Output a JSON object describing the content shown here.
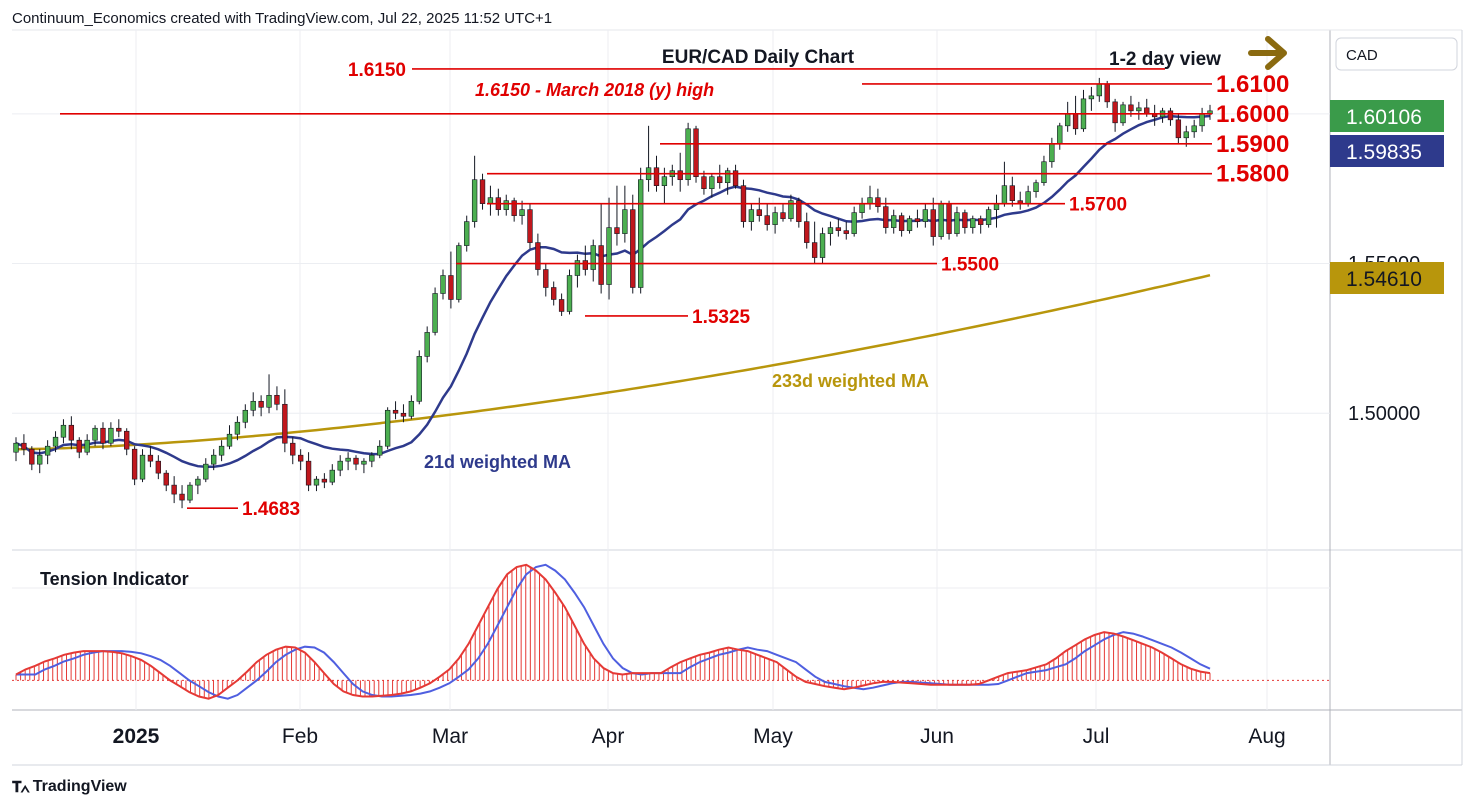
{
  "header": {
    "created_by": "Continuum_Economics created with TradingView.com, Jul 22, 2025 11:52 UTC+1"
  },
  "footer": {
    "brand": "TradingView",
    "logo_icon": "tradingview-logo-icon"
  },
  "colors": {
    "up_candle": "#4caf50",
    "down_candle": "#c0171d",
    "level_line": "#e00000",
    "ma21": "#2e3a8c",
    "ma233": "#b8960c",
    "tension_fill": "#e53935",
    "tension_signal": "#4f5fe0",
    "price_tag_current": "#3a9b4a",
    "price_tag_ma21": "#2e3a8c",
    "price_tag_ma233": "#b8960c",
    "arrow": "#8a6a10"
  },
  "chart_data": {
    "type": "candlestick",
    "title": "EUR/CAD Daily Chart",
    "view_label": "1-2 day view",
    "view_arrow_icon": "arrow-right-icon",
    "currency": "CAD",
    "price_axis": {
      "range": [
        1.455,
        1.628
      ],
      "labels": [
        "1.50000"
      ],
      "partial_label": "1.55000"
    },
    "time_axis": [
      "2025",
      "Feb",
      "Mar",
      "Apr",
      "May",
      "Jun",
      "Jul",
      "Aug"
    ],
    "price_tags": {
      "current": "1.60106",
      "ma21": "1.59835",
      "ma233": "1.54610"
    },
    "levels": [
      {
        "value": 1.615,
        "label": "1.6150",
        "extra": "1.6150 - March 2018 (y) high"
      },
      {
        "value": 1.61,
        "label": "1.6100"
      },
      {
        "value": 1.6,
        "label": "1.6000"
      },
      {
        "value": 1.59,
        "label": "1.5900"
      },
      {
        "value": 1.58,
        "label": "1.5800"
      },
      {
        "value": 1.57,
        "label": "1.5700"
      },
      {
        "value": 1.55,
        "label": "1.5500"
      },
      {
        "value": 1.5325,
        "label": "1.5325"
      },
      {
        "value": 1.4683,
        "label": "1.4683"
      }
    ],
    "annotations": {
      "ma21": "21d weighted MA",
      "ma233": "233d weighted MA"
    },
    "indicator": {
      "name": "Tension Indicator",
      "range": [
        -0.35,
        1.7
      ]
    },
    "candles": [
      [
        1.487,
        1.492,
        1.484,
        1.49
      ],
      [
        1.49,
        1.493,
        1.486,
        1.488
      ],
      [
        1.488,
        1.489,
        1.481,
        1.483
      ],
      [
        1.483,
        1.488,
        1.48,
        1.486
      ],
      [
        1.486,
        1.491,
        1.483,
        1.489
      ],
      [
        1.489,
        1.494,
        1.487,
        1.492
      ],
      [
        1.492,
        1.498,
        1.49,
        1.496
      ],
      [
        1.496,
        1.499,
        1.488,
        1.491
      ],
      [
        1.491,
        1.492,
        1.485,
        1.487
      ],
      [
        1.487,
        1.493,
        1.486,
        1.491
      ],
      [
        1.491,
        1.496,
        1.489,
        1.495
      ],
      [
        1.495,
        1.497,
        1.488,
        1.49
      ],
      [
        1.49,
        1.497,
        1.489,
        1.495
      ],
      [
        1.495,
        1.498,
        1.492,
        1.494
      ],
      [
        1.494,
        1.495,
        1.486,
        1.488
      ],
      [
        1.488,
        1.489,
        1.476,
        1.478
      ],
      [
        1.478,
        1.488,
        1.477,
        1.486
      ],
      [
        1.486,
        1.489,
        1.482,
        1.484
      ],
      [
        1.484,
        1.486,
        1.478,
        1.48
      ],
      [
        1.48,
        1.481,
        1.474,
        1.476
      ],
      [
        1.476,
        1.479,
        1.47,
        1.473
      ],
      [
        1.473,
        1.476,
        1.4683,
        1.471
      ],
      [
        1.471,
        1.477,
        1.47,
        1.476
      ],
      [
        1.476,
        1.479,
        1.473,
        1.478
      ],
      [
        1.478,
        1.485,
        1.477,
        1.483
      ],
      [
        1.483,
        1.488,
        1.481,
        1.486
      ],
      [
        1.486,
        1.491,
        1.484,
        1.489
      ],
      [
        1.489,
        1.496,
        1.488,
        1.493
      ],
      [
        1.493,
        1.499,
        1.491,
        1.497
      ],
      [
        1.497,
        1.503,
        1.495,
        1.501
      ],
      [
        1.501,
        1.507,
        1.499,
        1.504
      ],
      [
        1.504,
        1.506,
        1.499,
        1.502
      ],
      [
        1.502,
        1.513,
        1.5,
        1.506
      ],
      [
        1.506,
        1.509,
        1.501,
        1.503
      ],
      [
        1.503,
        1.508,
        1.487,
        1.49
      ],
      [
        1.49,
        1.492,
        1.483,
        1.486
      ],
      [
        1.486,
        1.488,
        1.481,
        1.484
      ],
      [
        1.484,
        1.487,
        1.474,
        1.476
      ],
      [
        1.476,
        1.479,
        1.474,
        1.478
      ],
      [
        1.478,
        1.48,
        1.475,
        1.477
      ],
      [
        1.477,
        1.483,
        1.476,
        1.481
      ],
      [
        1.481,
        1.486,
        1.479,
        1.484
      ],
      [
        1.484,
        1.487,
        1.481,
        1.485
      ],
      [
        1.485,
        1.486,
        1.481,
        1.483
      ],
      [
        1.483,
        1.485,
        1.48,
        1.484
      ],
      [
        1.484,
        1.487,
        1.482,
        1.486
      ],
      [
        1.486,
        1.491,
        1.485,
        1.489
      ],
      [
        1.489,
        1.502,
        1.488,
        1.501
      ],
      [
        1.501,
        1.504,
        1.498,
        1.5
      ],
      [
        1.5,
        1.503,
        1.497,
        1.499
      ],
      [
        1.499,
        1.506,
        1.498,
        1.504
      ],
      [
        1.504,
        1.521,
        1.503,
        1.519
      ],
      [
        1.519,
        1.529,
        1.517,
        1.527
      ],
      [
        1.527,
        1.542,
        1.526,
        1.54
      ],
      [
        1.54,
        1.548,
        1.538,
        1.546
      ],
      [
        1.546,
        1.554,
        1.535,
        1.538
      ],
      [
        1.538,
        1.557,
        1.537,
        1.556
      ],
      [
        1.556,
        1.566,
        1.554,
        1.564
      ],
      [
        1.564,
        1.586,
        1.562,
        1.578
      ],
      [
        1.578,
        1.58,
        1.568,
        1.57
      ],
      [
        1.57,
        1.576,
        1.566,
        1.572
      ],
      [
        1.572,
        1.575,
        1.566,
        1.568
      ],
      [
        1.568,
        1.573,
        1.566,
        1.571
      ],
      [
        1.571,
        1.572,
        1.564,
        1.566
      ],
      [
        1.566,
        1.571,
        1.563,
        1.568
      ],
      [
        1.568,
        1.57,
        1.555,
        1.557
      ],
      [
        1.557,
        1.56,
        1.546,
        1.548
      ],
      [
        1.548,
        1.55,
        1.539,
        1.542
      ],
      [
        1.542,
        1.544,
        1.536,
        1.538
      ],
      [
        1.538,
        1.54,
        1.5325,
        1.534
      ],
      [
        1.534,
        1.548,
        1.533,
        1.546
      ],
      [
        1.546,
        1.553,
        1.542,
        1.551
      ],
      [
        1.551,
        1.556,
        1.546,
        1.548
      ],
      [
        1.548,
        1.558,
        1.544,
        1.556
      ],
      [
        1.556,
        1.57,
        1.54,
        1.543
      ],
      [
        1.543,
        1.572,
        1.538,
        1.562
      ],
      [
        1.562,
        1.576,
        1.556,
        1.56
      ],
      [
        1.56,
        1.576,
        1.557,
        1.568
      ],
      [
        1.568,
        1.573,
        1.54,
        1.542
      ],
      [
        1.542,
        1.582,
        1.54,
        1.578
      ],
      [
        1.578,
        1.596,
        1.574,
        1.582
      ],
      [
        1.582,
        1.586,
        1.574,
        1.576
      ],
      [
        1.576,
        1.582,
        1.57,
        1.579
      ],
      [
        1.579,
        1.583,
        1.576,
        1.581
      ],
      [
        1.581,
        1.587,
        1.574,
        1.578
      ],
      [
        1.578,
        1.597,
        1.576,
        1.595
      ],
      [
        1.595,
        1.596,
        1.577,
        1.579
      ],
      [
        1.579,
        1.581,
        1.573,
        1.575
      ],
      [
        1.575,
        1.58,
        1.572,
        1.579
      ],
      [
        1.579,
        1.583,
        1.575,
        1.577
      ],
      [
        1.577,
        1.582,
        1.573,
        1.581
      ],
      [
        1.581,
        1.583,
        1.575,
        1.576
      ],
      [
        1.576,
        1.578,
        1.562,
        1.564
      ],
      [
        1.564,
        1.57,
        1.561,
        1.568
      ],
      [
        1.568,
        1.572,
        1.564,
        1.566
      ],
      [
        1.566,
        1.57,
        1.561,
        1.563
      ],
      [
        1.563,
        1.569,
        1.56,
        1.567
      ],
      [
        1.567,
        1.57,
        1.564,
        1.565
      ],
      [
        1.565,
        1.573,
        1.564,
        1.571
      ],
      [
        1.571,
        1.572,
        1.562,
        1.564
      ],
      [
        1.564,
        1.567,
        1.555,
        1.557
      ],
      [
        1.557,
        1.564,
        1.55,
        1.552
      ],
      [
        1.552,
        1.562,
        1.55,
        1.56
      ],
      [
        1.56,
        1.564,
        1.556,
        1.562
      ],
      [
        1.562,
        1.565,
        1.559,
        1.561
      ],
      [
        1.561,
        1.564,
        1.558,
        1.56
      ],
      [
        1.56,
        1.569,
        1.559,
        1.567
      ],
      [
        1.567,
        1.572,
        1.565,
        1.57
      ],
      [
        1.57,
        1.576,
        1.568,
        1.572
      ],
      [
        1.572,
        1.575,
        1.567,
        1.569
      ],
      [
        1.569,
        1.572,
        1.56,
        1.562
      ],
      [
        1.562,
        1.568,
        1.56,
        1.566
      ],
      [
        1.566,
        1.567,
        1.559,
        1.561
      ],
      [
        1.561,
        1.566,
        1.56,
        1.565
      ],
      [
        1.565,
        1.568,
        1.562,
        1.564
      ],
      [
        1.564,
        1.57,
        1.562,
        1.568
      ],
      [
        1.568,
        1.572,
        1.556,
        1.559
      ],
      [
        1.559,
        1.571,
        1.558,
        1.57
      ],
      [
        1.57,
        1.571,
        1.558,
        1.56
      ],
      [
        1.56,
        1.569,
        1.559,
        1.567
      ],
      [
        1.567,
        1.568,
        1.56,
        1.562
      ],
      [
        1.562,
        1.566,
        1.56,
        1.565
      ],
      [
        1.565,
        1.566,
        1.56,
        1.563
      ],
      [
        1.563,
        1.569,
        1.562,
        1.568
      ],
      [
        1.568,
        1.573,
        1.562,
        1.57
      ],
      [
        1.57,
        1.584,
        1.569,
        1.576
      ],
      [
        1.576,
        1.579,
        1.569,
        1.571
      ],
      [
        1.571,
        1.574,
        1.568,
        1.57
      ],
      [
        1.57,
        1.576,
        1.569,
        1.574
      ],
      [
        1.574,
        1.578,
        1.572,
        1.577
      ],
      [
        1.577,
        1.586,
        1.576,
        1.584
      ],
      [
        1.584,
        1.592,
        1.582,
        1.59
      ],
      [
        1.59,
        1.597,
        1.588,
        1.596
      ],
      [
        1.596,
        1.604,
        1.594,
        1.6
      ],
      [
        1.6,
        1.606,
        1.593,
        1.595
      ],
      [
        1.595,
        1.608,
        1.594,
        1.605
      ],
      [
        1.605,
        1.609,
        1.601,
        1.606
      ],
      [
        1.606,
        1.612,
        1.604,
        1.61
      ],
      [
        1.61,
        1.611,
        1.602,
        1.604
      ],
      [
        1.604,
        1.605,
        1.594,
        1.597
      ],
      [
        1.597,
        1.604,
        1.596,
        1.603
      ],
      [
        1.603,
        1.606,
        1.599,
        1.601
      ],
      [
        1.601,
        1.604,
        1.598,
        1.602
      ],
      [
        1.602,
        1.605,
        1.599,
        1.6
      ],
      [
        1.6,
        1.603,
        1.596,
        1.599
      ],
      [
        1.599,
        1.602,
        1.597,
        1.601
      ],
      [
        1.601,
        1.602,
        1.596,
        1.598
      ],
      [
        1.598,
        1.6,
        1.59,
        1.592
      ],
      [
        1.592,
        1.596,
        1.589,
        1.594
      ],
      [
        1.594,
        1.598,
        1.592,
        1.596
      ],
      [
        1.596,
        1.602,
        1.594,
        1.6
      ],
      [
        1.6,
        1.603,
        1.598,
        1.601
      ]
    ],
    "tension": [
      0.08,
      0.15,
      0.2,
      0.26,
      0.3,
      0.35,
      0.38,
      0.4,
      0.4,
      0.4,
      0.39,
      0.37,
      0.33,
      0.28,
      0.2,
      0.1,
      0.0,
      -0.08,
      -0.16,
      -0.22,
      -0.25,
      -0.2,
      -0.1,
      0.0,
      0.12,
      0.25,
      0.35,
      0.42,
      0.46,
      0.45,
      0.38,
      0.25,
      0.1,
      -0.05,
      -0.15,
      -0.2,
      -0.22,
      -0.22,
      -0.21,
      -0.2,
      -0.18,
      -0.15,
      -0.1,
      -0.04,
      0.05,
      0.15,
      0.3,
      0.5,
      0.75,
      1.0,
      1.25,
      1.45,
      1.55,
      1.58,
      1.5,
      1.38,
      1.2,
      1.0,
      0.75,
      0.5,
      0.3,
      0.17,
      0.1,
      0.08,
      0.1,
      0.1,
      0.1,
      0.1,
      0.18,
      0.25,
      0.3,
      0.35,
      0.38,
      0.42,
      0.45,
      0.42,
      0.4,
      0.35,
      0.3,
      0.25,
      0.15,
      0.05,
      -0.02,
      -0.05,
      -0.08,
      -0.1,
      -0.12,
      -0.1,
      -0.07,
      -0.04,
      -0.02,
      -0.02,
      -0.03,
      -0.04,
      -0.05,
      -0.06,
      -0.06,
      -0.06,
      -0.06,
      -0.06,
      -0.05,
      0.0,
      0.05,
      0.1,
      0.12,
      0.14,
      0.18,
      0.22,
      0.3,
      0.4,
      0.48,
      0.56,
      0.62,
      0.66,
      0.64,
      0.6,
      0.55,
      0.5,
      0.45,
      0.38,
      0.3,
      0.22,
      0.16,
      0.12,
      0.1
    ]
  }
}
